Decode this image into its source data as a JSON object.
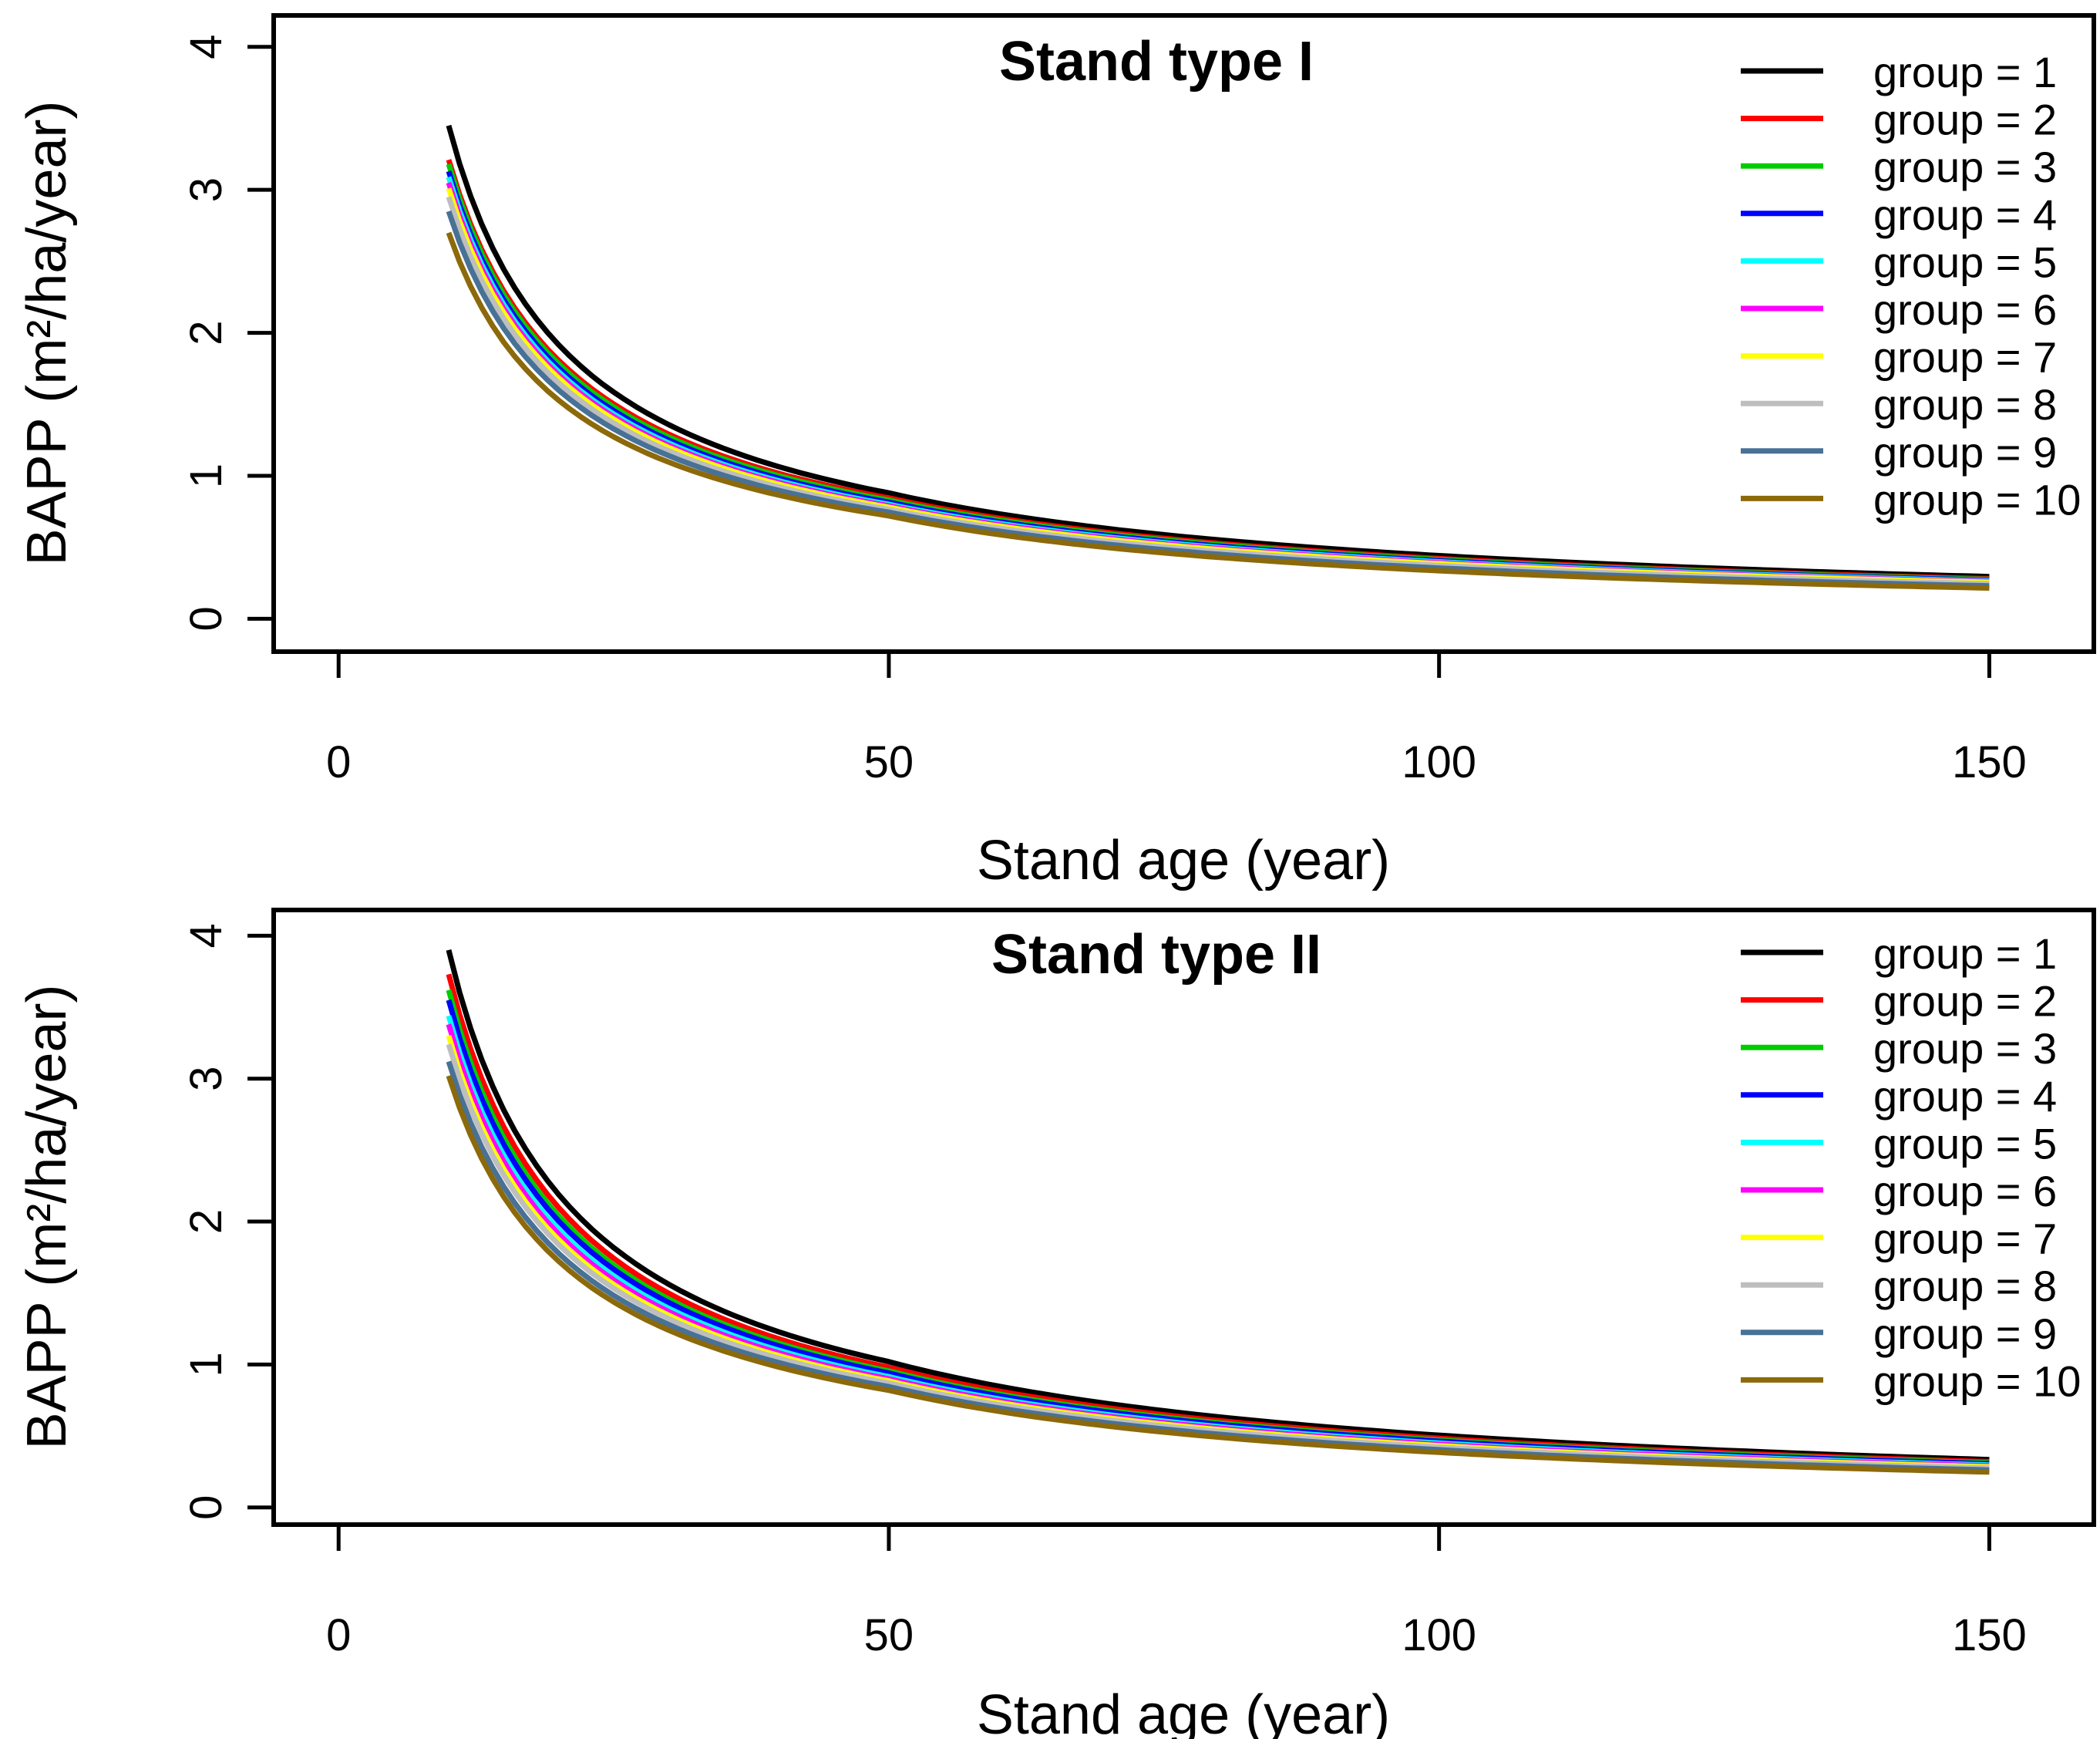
{
  "figure": {
    "background": "#ffffff",
    "text_color": "#000000"
  },
  "chart_data": [
    {
      "type": "line",
      "title": "Stand type I",
      "xlabel": "Stand age (year)",
      "ylabel": "BAPP (m²/ha/year)",
      "xlim": [
        -5.9,
        159.5
      ],
      "ylim": [
        -0.23,
        4.22
      ],
      "x_ticks": [
        "0",
        "50",
        "100",
        "150"
      ],
      "y_ticks": [
        "0",
        "1",
        "2",
        "3",
        "4"
      ],
      "x_tick_values": [
        0,
        50,
        100,
        150
      ],
      "y_tick_values": [
        0,
        1,
        2,
        3,
        4
      ],
      "age_range": [
        10,
        150
      ],
      "grid": false,
      "legend_position": "top-right-inside",
      "series": [
        {
          "name": "group = 1",
          "color": "#000000",
          "points": [
            [
              10,
              3.45
            ],
            [
              50,
              0.88
            ],
            [
              150,
              0.295
            ]
          ]
        },
        {
          "name": "group = 2",
          "color": "#FF0000",
          "points": [
            [
              10,
              3.21
            ],
            [
              50,
              0.845
            ],
            [
              150,
              0.28
            ]
          ]
        },
        {
          "name": "group = 3",
          "color": "#00CD00",
          "points": [
            [
              10,
              3.18
            ],
            [
              50,
              0.83
            ],
            [
              150,
              0.275
            ]
          ]
        },
        {
          "name": "group = 4",
          "color": "#0000FF",
          "points": [
            [
              10,
              3.13
            ],
            [
              50,
              0.815
            ],
            [
              150,
              0.27
            ]
          ]
        },
        {
          "name": "group = 5",
          "color": "#00FFFF",
          "points": [
            [
              10,
              3.09
            ],
            [
              50,
              0.8
            ],
            [
              150,
              0.265
            ]
          ]
        },
        {
          "name": "group = 6",
          "color": "#FF00FF",
          "points": [
            [
              10,
              3.05
            ],
            [
              50,
              0.79
            ],
            [
              150,
              0.26
            ]
          ]
        },
        {
          "name": "group = 7",
          "color": "#FFFF00",
          "points": [
            [
              10,
              3.01
            ],
            [
              50,
              0.78
            ],
            [
              150,
              0.255
            ]
          ]
        },
        {
          "name": "group = 8",
          "color": "#BEBEBE",
          "points": [
            [
              10,
              2.95
            ],
            [
              50,
              0.765
            ],
            [
              150,
              0.245
            ]
          ]
        },
        {
          "name": "group = 9",
          "color": "#487196",
          "points": [
            [
              10,
              2.85
            ],
            [
              50,
              0.745
            ],
            [
              150,
              0.23
            ]
          ]
        },
        {
          "name": "group = 10",
          "color": "#8C690A",
          "points": [
            [
              10,
              2.7
            ],
            [
              50,
              0.72
            ],
            [
              150,
              0.215
            ]
          ]
        }
      ]
    },
    {
      "type": "line",
      "title": "Stand type II",
      "xlabel": "Stand age (year)",
      "ylabel": "BAPP (m²/ha/year)",
      "xlim": [
        -5.9,
        159.5
      ],
      "ylim": [
        -0.12,
        4.18
      ],
      "x_ticks": [
        "0",
        "50",
        "100",
        "150"
      ],
      "y_ticks": [
        "0",
        "1",
        "2",
        "3",
        "4"
      ],
      "x_tick_values": [
        0,
        50,
        100,
        150
      ],
      "y_tick_values": [
        0,
        1,
        2,
        3,
        4
      ],
      "age_range": [
        10,
        150
      ],
      "grid": false,
      "legend_position": "top-right-inside",
      "series": [
        {
          "name": "group = 1",
          "color": "#000000",
          "points": [
            [
              10,
              3.9
            ],
            [
              50,
              1.02
            ],
            [
              150,
              0.335
            ]
          ]
        },
        {
          "name": "group = 2",
          "color": "#FF0000",
          "points": [
            [
              10,
              3.73
            ],
            [
              50,
              0.98
            ],
            [
              150,
              0.32
            ]
          ]
        },
        {
          "name": "group = 3",
          "color": "#00CD00",
          "points": [
            [
              10,
              3.62
            ],
            [
              50,
              0.955
            ],
            [
              150,
              0.312
            ]
          ]
        },
        {
          "name": "group = 4",
          "color": "#0000FF",
          "points": [
            [
              10,
              3.55
            ],
            [
              50,
              0.94
            ],
            [
              150,
              0.306
            ]
          ]
        },
        {
          "name": "group = 5",
          "color": "#00FFFF",
          "points": [
            [
              10,
              3.44
            ],
            [
              50,
              0.915
            ],
            [
              150,
              0.297
            ]
          ]
        },
        {
          "name": "group = 6",
          "color": "#FF00FF",
          "points": [
            [
              10,
              3.38
            ],
            [
              50,
              0.9
            ],
            [
              150,
              0.291
            ]
          ]
        },
        {
          "name": "group = 7",
          "color": "#FFFF00",
          "points": [
            [
              10,
              3.3
            ],
            [
              50,
              0.885
            ],
            [
              150,
              0.284
            ]
          ]
        },
        {
          "name": "group = 8",
          "color": "#BEBEBE",
          "points": [
            [
              10,
              3.24
            ],
            [
              50,
              0.87
            ],
            [
              150,
              0.276
            ]
          ]
        },
        {
          "name": "group = 9",
          "color": "#487196",
          "points": [
            [
              10,
              3.12
            ],
            [
              50,
              0.845
            ],
            [
              150,
              0.262
            ]
          ]
        },
        {
          "name": "group = 10",
          "color": "#8C690A",
          "points": [
            [
              10,
              3.02
            ],
            [
              50,
              0.82
            ],
            [
              150,
              0.248
            ]
          ]
        }
      ]
    }
  ]
}
